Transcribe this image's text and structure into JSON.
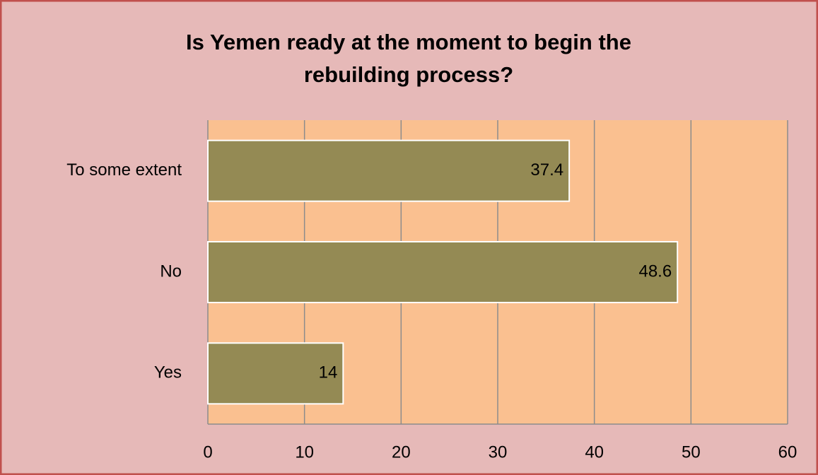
{
  "chart_data": {
    "type": "bar",
    "orientation": "horizontal",
    "title": "Is Yemen ready at the moment to begin the rebuilding process?",
    "categories": [
      "To some extent",
      "No",
      "Yes"
    ],
    "values": [
      37.4,
      48.6,
      14
    ],
    "color": "#948a54",
    "xlim": [
      0,
      60
    ],
    "xticks": [
      0,
      10,
      20,
      30,
      40,
      50,
      60
    ],
    "grid": true
  }
}
